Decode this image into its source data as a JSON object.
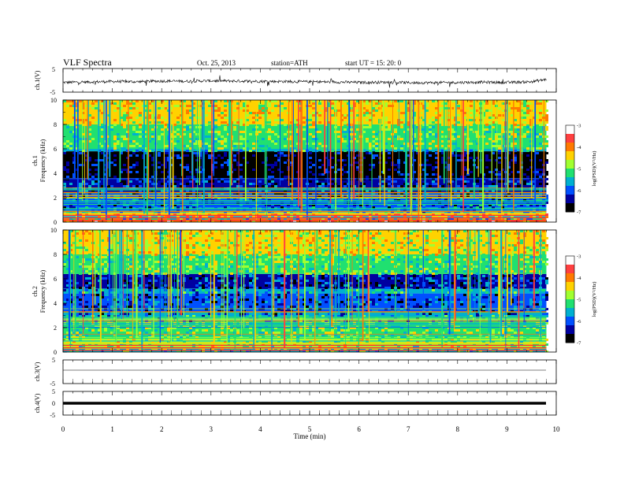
{
  "header": {
    "title": "VLF  Spectra",
    "date": "Oct. 25, 2013",
    "station": "station=ATH",
    "start": "start  UT  =    15: 20: 0"
  },
  "colorbar": {
    "label": "log(PSD)(V²/Hz)",
    "ticks": [
      "-3",
      "-4",
      "-5",
      "-6",
      "-7"
    ],
    "colors": [
      "#ffffff",
      "#ff4040",
      "#ff7a00",
      "#ffd200",
      "#a0ff30",
      "#20e070",
      "#00b0d0",
      "#0050ff",
      "#0000a0",
      "#000000"
    ]
  },
  "chart_data": [
    {
      "type": "line",
      "panel": "ch1",
      "ylabel": "ch.1(V)",
      "yticks": [
        "5",
        "-5"
      ],
      "ylim": [
        -5,
        5
      ],
      "x": [
        0,
        0.5,
        1,
        1.5,
        2,
        2.5,
        3,
        3.5,
        4,
        4.5,
        5,
        5.5,
        6,
        6.5,
        7,
        7.5,
        8,
        8.5,
        9,
        9.5,
        9.8
      ],
      "y": [
        -0.9,
        -0.7,
        -0.5,
        -0.6,
        -0.3,
        -0.4,
        -0.2,
        -0.3,
        -0.4,
        -0.5,
        -0.6,
        -0.7,
        -0.9,
        -0.8,
        -1.0,
        -1.0,
        -0.9,
        -0.8,
        -0.9,
        -0.6,
        0.4
      ]
    },
    {
      "type": "heatmap",
      "panel": "ch1",
      "ylabel": "ch.1\nFrequency (kHz)",
      "yticks": [
        "10",
        "8",
        "6",
        "4",
        "2",
        "0"
      ],
      "ylim": [
        0,
        10
      ],
      "xlim": [
        0,
        9.8
      ],
      "z_unit": "log(PSD)(V²/Hz)",
      "zlim": [
        -7,
        -3
      ],
      "bands": [
        {
          "f": [
            0,
            0.3
          ],
          "z": -4.0
        },
        {
          "f": [
            0.3,
            0.5
          ],
          "z": -5.5
        },
        {
          "f": [
            0.5,
            0.8
          ],
          "z": -4.2
        },
        {
          "f": [
            0.8,
            1.2
          ],
          "z": -5.6
        },
        {
          "f": [
            1.2,
            2.4
          ],
          "z": -6.0
        },
        {
          "f": [
            2.4,
            3.6
          ],
          "z": -6.2
        },
        {
          "f": [
            3.6,
            5.8
          ],
          "z": -6.6
        },
        {
          "f": [
            5.8,
            6.0
          ],
          "z": -5.5
        },
        {
          "f": [
            6.0,
            8.0
          ],
          "z": -5.0
        },
        {
          "f": [
            8.0,
            10.0
          ],
          "z": -4.5
        }
      ]
    },
    {
      "type": "heatmap",
      "panel": "ch2",
      "ylabel": "ch.2\nFrequency (kHz)",
      "yticks": [
        "10",
        "8",
        "6",
        "4",
        "2",
        "0"
      ],
      "ylim": [
        0,
        10
      ],
      "xlim": [
        0,
        9.8
      ],
      "z_unit": "log(PSD)(V²/Hz)",
      "zlim": [
        -7,
        -3
      ],
      "bands": [
        {
          "f": [
            0,
            0.3
          ],
          "z": -5.4
        },
        {
          "f": [
            0.3,
            1.2
          ],
          "z": -4.8
        },
        {
          "f": [
            1.2,
            2.6
          ],
          "z": -5.0
        },
        {
          "f": [
            2.6,
            3.2
          ],
          "z": -5.6
        },
        {
          "f": [
            3.2,
            4.8
          ],
          "z": -6.1
        },
        {
          "f": [
            4.8,
            5.2
          ],
          "z": -5.6
        },
        {
          "f": [
            5.2,
            6.4
          ],
          "z": -6.2
        },
        {
          "f": [
            6.4,
            8.0
          ],
          "z": -5.0
        },
        {
          "f": [
            8.0,
            10.0
          ],
          "z": -4.6
        }
      ]
    },
    {
      "type": "line",
      "panel": "ch3",
      "ylabel": "ch.3(V)",
      "yticks": [
        "5",
        "-5"
      ],
      "ylim": [
        -5,
        5
      ],
      "x": [
        0,
        9.8
      ],
      "y": [
        0,
        0
      ]
    },
    {
      "type": "line",
      "panel": "ch4",
      "ylabel": "ch.4(V)",
      "yticks": [
        "5",
        "0",
        "-5"
      ],
      "ylim": [
        -5,
        5
      ],
      "x": [
        0,
        9.8
      ],
      "y": [
        0,
        0
      ]
    }
  ],
  "xaxis": {
    "label": "Time  (min)",
    "ticks": [
      "0",
      "1",
      "2",
      "3",
      "4",
      "5",
      "6",
      "7",
      "8",
      "9",
      "10"
    ],
    "xlim": [
      0,
      10
    ]
  }
}
